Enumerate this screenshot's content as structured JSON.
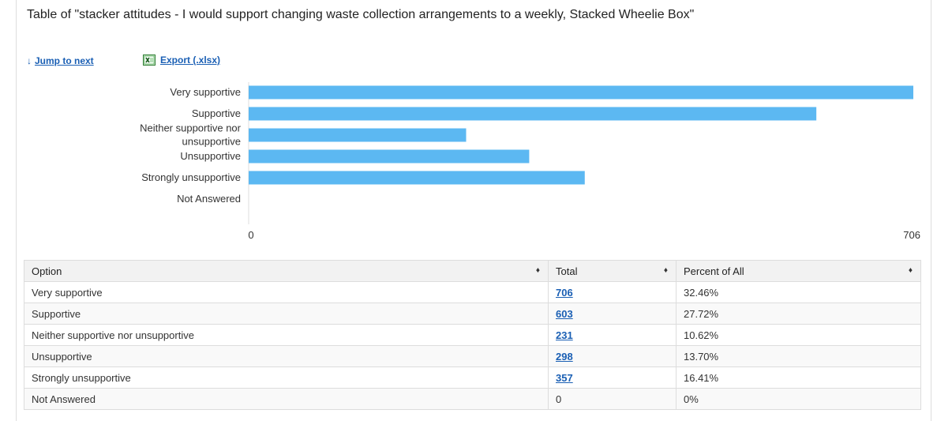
{
  "title": "Table of \"stacker attitudes - I would support changing waste collection arrangements to a weekly, Stacked Wheelie Box\"",
  "links": {
    "jump_arrow": "↓",
    "jump_label": "Jump to next",
    "export_label": "Export (.xlsx)"
  },
  "colors": {
    "bar": "#5cb8f2",
    "link": "#1a5fb4",
    "header_bg": "#f2f2f2"
  },
  "chart_data": {
    "type": "bar",
    "orientation": "horizontal",
    "categories": [
      "Very supportive",
      "Supportive",
      "Neither supportive nor unsupportive",
      "Unsupportive",
      "Strongly unsupportive",
      "Not Answered"
    ],
    "category_lines": [
      [
        "Very supportive"
      ],
      [
        "Supportive"
      ],
      [
        "Neither supportive nor",
        "unsupportive"
      ],
      [
        "Unsupportive"
      ],
      [
        "Strongly unsupportive"
      ],
      [
        "Not Answered"
      ]
    ],
    "values": [
      706,
      603,
      231,
      298,
      357,
      0
    ],
    "xlim": [
      0,
      706
    ],
    "xticks": [
      "0",
      "706"
    ],
    "grid": false,
    "legend": "none"
  },
  "table": {
    "headers": [
      "Option",
      "Total",
      "Percent of All"
    ],
    "sort_icon": "♦",
    "rows": [
      {
        "option": "Very supportive",
        "total": "706",
        "percent": "32.46%",
        "link": true
      },
      {
        "option": "Supportive",
        "total": "603",
        "percent": "27.72%",
        "link": true
      },
      {
        "option": "Neither supportive nor unsupportive",
        "total": "231",
        "percent": "10.62%",
        "link": true
      },
      {
        "option": "Unsupportive",
        "total": "298",
        "percent": "13.70%",
        "link": true
      },
      {
        "option": "Strongly unsupportive",
        "total": "357",
        "percent": "16.41%",
        "link": true
      },
      {
        "option": "Not Answered",
        "total": "0",
        "percent": "0%",
        "link": false
      }
    ]
  }
}
